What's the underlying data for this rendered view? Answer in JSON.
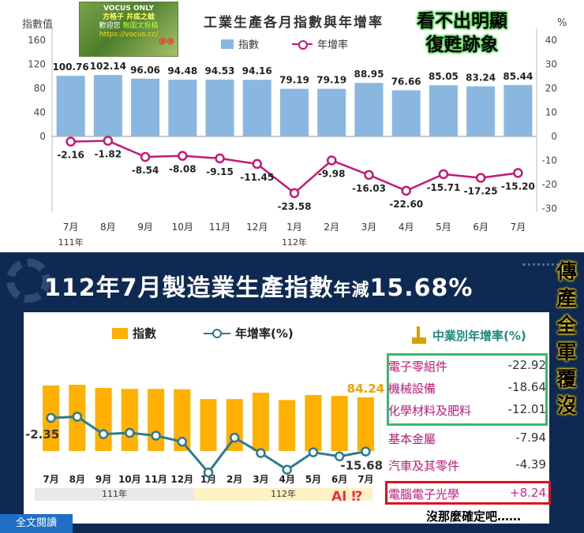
{
  "top_chart_meta": {
    "title": "工業生產各月指數與年增率",
    "left_axis_title": "指數值",
    "right_axis_title": "%",
    "legend_bar": "指數",
    "legend_line": "年增率",
    "year_labels": [
      "111年",
      "112年"
    ],
    "watermark": {
      "line1": "VOCUS ONLY",
      "line2": "方格子",
      "line3": "井底之蛙",
      "line4": "歡迎您",
      "line5": "無圖文投稿",
      "line6": "https://vocus.cc/",
      "badge": "@@"
    },
    "note_line1": "看不出明顯",
    "note_line2": "復甦跡象",
    "colors": {
      "bar": "#8ab7e0",
      "line": "#c4187a"
    }
  },
  "bottom_meta": {
    "title_prefix": "112年7月製造業生產指數",
    "title_small": "年減",
    "title_value": "15.68%",
    "vertical_note": [
      "傳",
      "產",
      "全",
      "軍",
      "覆",
      "沒"
    ],
    "legend_bar": "指數",
    "legend_line": "年增率(%)",
    "industry_header": "中業別年增率(%)",
    "industries": [
      {
        "name": "電子零組件",
        "value": "-22.92"
      },
      {
        "name": "機械設備",
        "value": "-18.64"
      },
      {
        "name": "化學材料及肥料",
        "value": "-12.01"
      },
      {
        "name": "基本金屬",
        "value": "-7.94"
      },
      {
        "name": "汽車及其零件",
        "value": "-4.39"
      },
      {
        "name": "電腦電子光學",
        "value": "+8.24"
      }
    ],
    "year_labels": [
      "111年",
      "112年"
    ],
    "fulltext_button": "全文閱讀",
    "ai_note": "AI",
    "ai_mark": "⁉",
    "bottom_note": "沒那麼確定吧……",
    "colors": {
      "bar": "#ffb000",
      "line": "#2b7a8f",
      "panel": "#0f2a52"
    }
  },
  "chart_data": [
    {
      "type": "bar",
      "title": "工業生產各月指數與年增率",
      "categories": [
        "7月",
        "8月",
        "9月",
        "10月",
        "11月",
        "12月",
        "1月",
        "2月",
        "3月",
        "4月",
        "5月",
        "6月",
        "7月"
      ],
      "series": [
        {
          "name": "指數",
          "values": [
            100.76,
            102.14,
            96.06,
            94.48,
            94.53,
            94.16,
            79.19,
            79.19,
            88.95,
            76.66,
            85.05,
            83.24,
            85.44
          ],
          "axis": "left"
        },
        {
          "name": "年增率",
          "type": "line",
          "values": [
            -2.16,
            -1.82,
            -8.54,
            -8.08,
            -9.15,
            -11.45,
            -23.58,
            -9.98,
            -16.03,
            -22.6,
            -15.71,
            -17.25,
            -15.2
          ],
          "axis": "right"
        }
      ],
      "value_labels": [
        "100.76",
        "102.14",
        "96.06",
        "94.48",
        "94.53",
        "94.16",
        "79.19",
        "79.19",
        "88.95",
        "76.66",
        "85.05",
        "83.24",
        "85.44"
      ],
      "rate_labels": [
        "-2.16",
        "-1.82",
        "-8.54",
        "-8.08",
        "-9.15",
        "-11.45",
        "-23.58",
        "-9.98",
        "-16.03",
        "-22.60",
        "-15.71",
        "-17.25",
        "-15.20"
      ],
      "left_ticks": [
        "160",
        "120",
        "80",
        "40",
        "0"
      ],
      "right_ticks": [
        "40",
        "30",
        "20",
        "10",
        "0",
        "-10",
        "-20",
        "-30"
      ],
      "ylabel": "指數值",
      "y2label": "%",
      "ylim": [
        -40,
        160
      ],
      "y2lim": [
        -30,
        40
      ]
    },
    {
      "type": "bar",
      "title": "112年7月製造業生產指數年減15.68%",
      "categories": [
        "7月",
        "8月",
        "9月",
        "10月",
        "11月",
        "12月",
        "1月",
        "2月",
        "3月",
        "4月",
        "5月",
        "6月",
        "7月"
      ],
      "series": [
        {
          "name": "指數",
          "values": [
            103.0,
            104.0,
            99.0,
            97.5,
            97.5,
            97.0,
            81.5,
            81.5,
            91.5,
            80.0,
            88.0,
            86.5,
            84.24
          ]
        },
        {
          "name": "年增率(%)",
          "type": "line",
          "values": [
            -2.35,
            -1.9,
            -8.8,
            -8.3,
            -9.4,
            -11.8,
            -24.0,
            -10.2,
            -16.3,
            -22.9,
            -16.0,
            -17.6,
            -15.68
          ]
        }
      ],
      "labeled_points": {
        "first_rate": "-2.35",
        "last_rate": "-15.68",
        "last_index": "84.24"
      }
    }
  ]
}
